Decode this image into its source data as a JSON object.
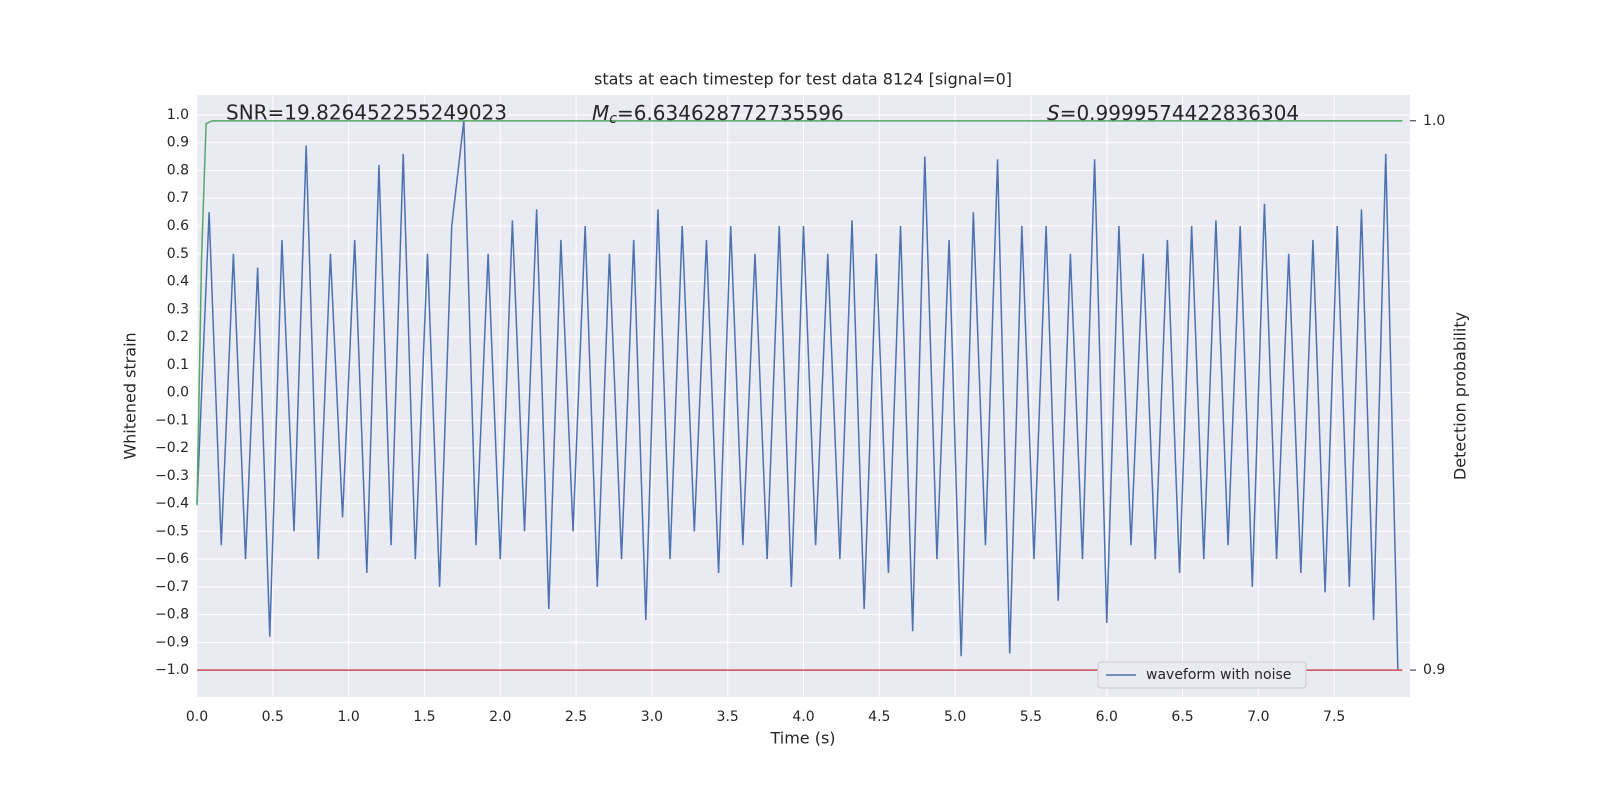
{
  "chart_data": {
    "type": "line",
    "title": "stats at each timestep for test data 8124 [signal=0]",
    "xlabel": "Time (s)",
    "ylabel": "Whitened strain",
    "y2label": "Detection probability",
    "annotations": [
      {
        "text": "SNR=19.826452255249023"
      },
      {
        "symbol": "M",
        "subscript": "c",
        "text": "=6.634628772735596"
      },
      {
        "symbol": "S",
        "text": "=0.9999574422836304"
      }
    ],
    "xlim": [
      0,
      8.0
    ],
    "ylim": [
      -1.097,
      1.072
    ],
    "y2lim": [
      0.8951,
      1.0047
    ],
    "xticks": [
      {
        "value": 0,
        "label": "0.0"
      },
      0.5,
      {
        "value": 1,
        "label": "1.0"
      },
      1.5,
      {
        "value": 2,
        "label": "2.0"
      },
      2.5,
      {
        "value": 3,
        "label": "3.0"
      },
      3.5,
      {
        "value": 4,
        "label": "4.0"
      },
      4.5,
      {
        "value": 5,
        "label": "5.0"
      },
      5.5,
      {
        "value": 6,
        "label": "6.0"
      },
      6.5,
      {
        "value": 7,
        "label": "7.0"
      },
      7.5
    ],
    "yticks": [
      {
        "value": -1,
        "label": "−1.0"
      },
      {
        "value": -0.9,
        "label": "−0.9"
      },
      {
        "value": -0.8,
        "label": "−0.8"
      },
      {
        "value": -0.7,
        "label": "−0.7"
      },
      {
        "value": -0.6,
        "label": "−0.6"
      },
      {
        "value": -0.5,
        "label": "−0.5"
      },
      {
        "value": -0.4,
        "label": "−0.4"
      },
      {
        "value": -0.3,
        "label": "−0.3"
      },
      {
        "value": -0.2,
        "label": "−0.2"
      },
      {
        "value": -0.1,
        "label": "−0.1"
      },
      {
        "value": 0,
        "label": "0.0"
      },
      0.1,
      0.2,
      0.3,
      0.4,
      0.5,
      0.6,
      0.7,
      0.8,
      0.9,
      {
        "value": 1,
        "label": "1.0"
      }
    ],
    "y2ticks": [
      0.9,
      {
        "value": 1,
        "label": "1.0"
      }
    ],
    "grid": true,
    "legend": "lower right",
    "series": [
      {
        "name": "waveform with noise",
        "color": "#4c72b0",
        "axis": "y",
        "x": [
          0,
          0.08,
          0.16,
          0.24,
          0.32,
          0.4,
          0.48,
          0.56,
          0.64,
          0.72,
          0.8,
          0.88,
          0.96,
          1.04,
          1.12,
          1.2,
          1.28,
          1.36,
          1.44,
          1.52,
          1.6,
          1.68,
          1.76,
          1.84,
          1.92,
          2.0,
          2.08,
          2.16,
          2.24,
          2.32,
          2.4,
          2.48,
          2.56,
          2.64,
          2.72,
          2.8,
          2.88,
          2.96,
          3.04,
          3.12,
          3.2,
          3.28,
          3.36,
          3.44,
          3.52,
          3.6,
          3.68,
          3.76,
          3.84,
          3.92,
          4.0,
          4.08,
          4.16,
          4.24,
          4.32,
          4.4,
          4.48,
          4.56,
          4.64,
          4.72,
          4.8,
          4.88,
          4.96,
          5.04,
          5.12,
          5.2,
          5.28,
          5.36,
          5.44,
          5.52,
          5.6,
          5.68,
          5.76,
          5.84,
          5.92,
          6.0,
          6.08,
          6.16,
          6.24,
          6.32,
          6.4,
          6.48,
          6.56,
          6.64,
          6.72,
          6.8,
          6.88,
          6.96,
          7.04,
          7.12,
          7.2,
          7.28,
          7.36,
          7.44,
          7.52,
          7.6,
          7.68,
          7.76,
          7.84,
          7.92
        ],
        "values": [
          -0.4,
          0.65,
          -0.55,
          0.5,
          -0.6,
          0.45,
          -0.88,
          0.55,
          -0.5,
          0.89,
          -0.6,
          0.5,
          -0.45,
          0.55,
          -0.65,
          0.82,
          -0.55,
          0.86,
          -0.6,
          0.5,
          -0.7,
          0.6,
          0.98,
          -0.55,
          0.5,
          -0.6,
          0.62,
          -0.5,
          0.66,
          -0.78,
          0.55,
          -0.5,
          0.6,
          -0.7,
          0.5,
          -0.6,
          0.55,
          -0.82,
          0.66,
          -0.6,
          0.6,
          -0.5,
          0.55,
          -0.65,
          0.6,
          -0.55,
          0.5,
          -0.6,
          0.6,
          -0.7,
          0.6,
          -0.55,
          0.5,
          -0.6,
          0.62,
          -0.78,
          0.5,
          -0.65,
          0.6,
          -0.86,
          0.85,
          -0.6,
          0.55,
          -0.95,
          0.65,
          -0.55,
          0.84,
          -0.94,
          0.6,
          -0.6,
          0.6,
          -0.75,
          0.5,
          -0.6,
          0.84,
          -0.83,
          0.6,
          -0.55,
          0.5,
          -0.6,
          0.55,
          -0.65,
          0.6,
          -0.6,
          0.62,
          -0.55,
          0.6,
          -0.7,
          0.68,
          -0.6,
          0.5,
          -0.65,
          0.55,
          -0.72,
          0.6,
          -0.7,
          0.66,
          -0.82,
          0.86,
          -1.0
        ]
      },
      {
        "color": "#55a868",
        "axis": "y2",
        "x": [
          0,
          0.03,
          0.06,
          0.1,
          7.95
        ],
        "values": [
          0.93,
          0.975,
          0.9995,
          1.0,
          1.0
        ]
      },
      {
        "color": "#c44e52",
        "axis": "y",
        "x": [
          0,
          7.95
        ],
        "values": [
          -1,
          -1
        ]
      }
    ]
  }
}
